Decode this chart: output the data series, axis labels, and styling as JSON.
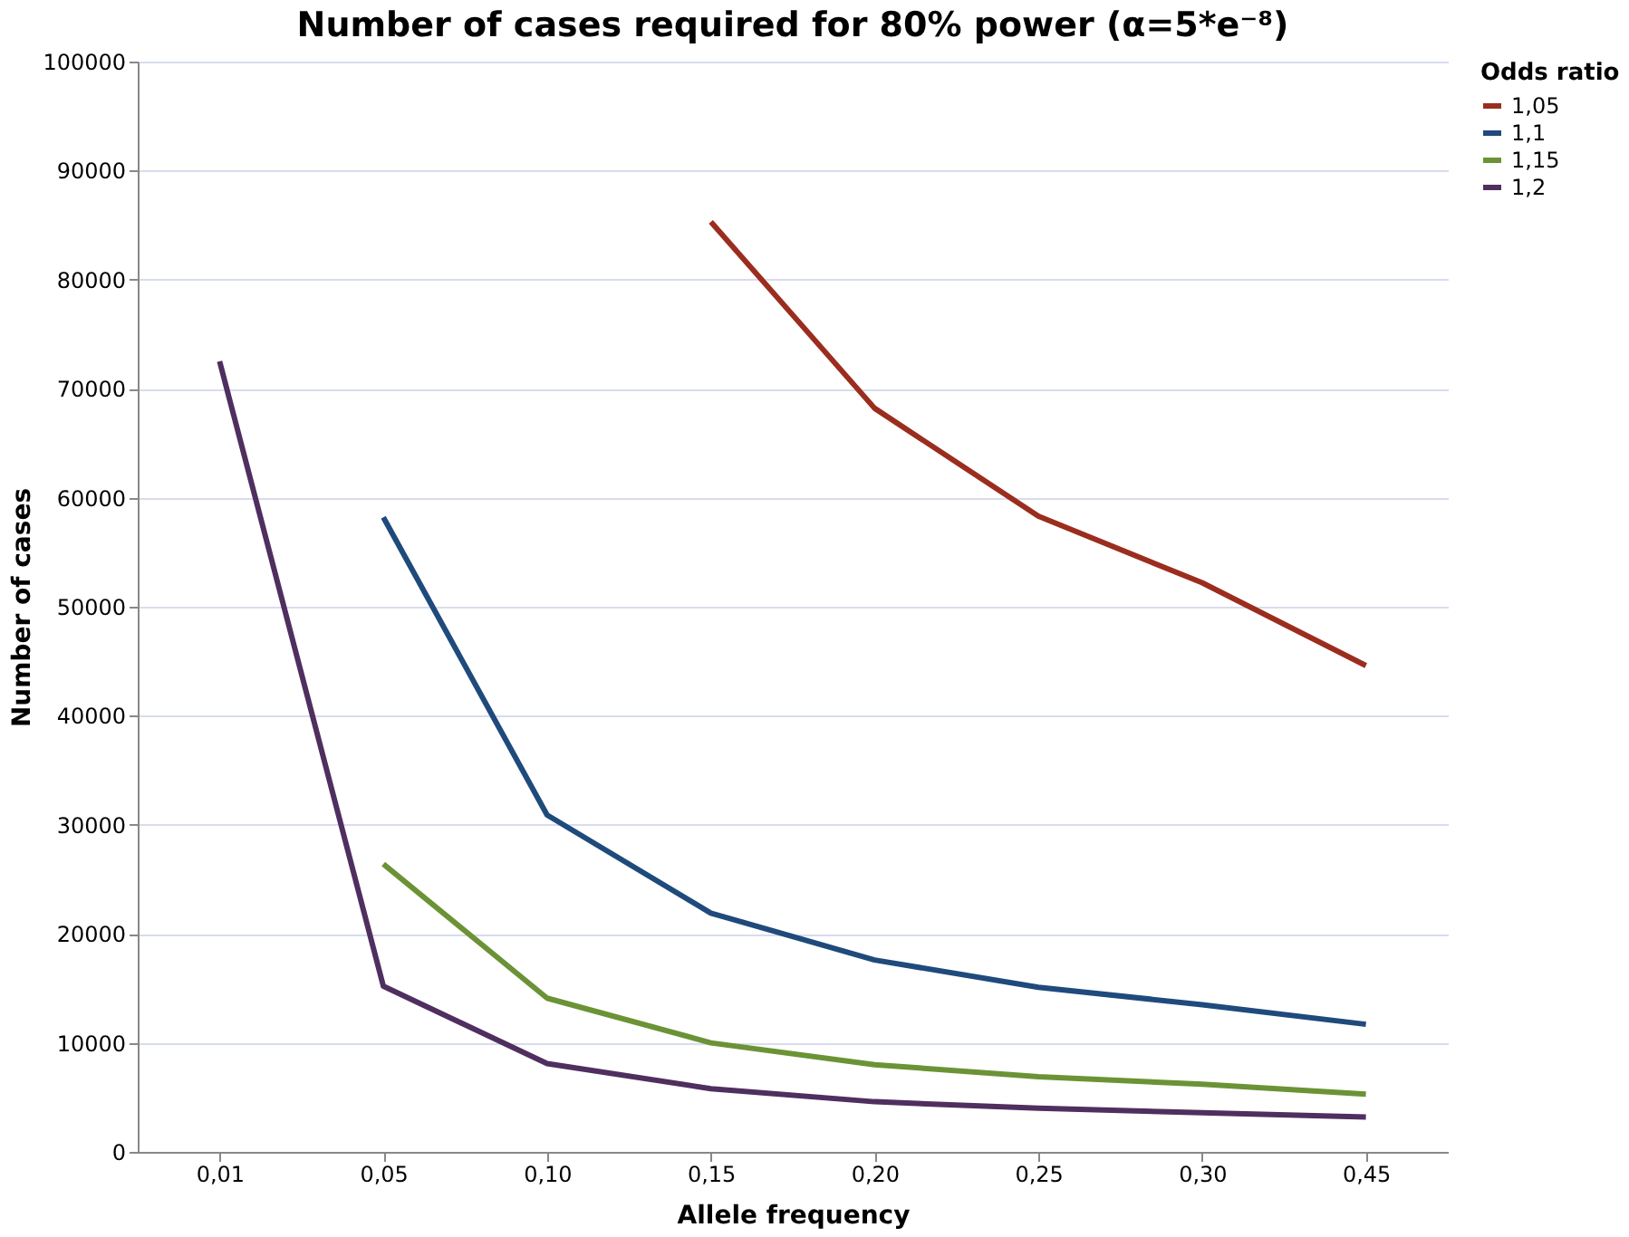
{
  "chart_data": {
    "type": "line",
    "title": "Number of cases required for 80% power (α=5*e⁻⁸)",
    "xlabel": "Allele frequency",
    "ylabel": "Number of cases",
    "legend_title": "Odds ratio",
    "categories": [
      "0,01",
      "0,05",
      "0,10",
      "0,15",
      "0,20",
      "0,25",
      "0,30",
      "0,45"
    ],
    "series": [
      {
        "name": "1,05",
        "color": "#9b2d1f",
        "values": [
          null,
          null,
          null,
          85300,
          68200,
          58300,
          52200,
          44600
        ]
      },
      {
        "name": "1,1",
        "color": "#1f4a7c",
        "values": [
          null,
          58200,
          30900,
          21900,
          17600,
          15100,
          13500,
          11700
        ]
      },
      {
        "name": "1,15",
        "color": "#6b9336",
        "values": [
          null,
          26400,
          14100,
          10000,
          8000,
          6900,
          6200,
          5300
        ]
      },
      {
        "name": "1,2",
        "color": "#4f2f5f",
        "values": [
          72500,
          15200,
          8100,
          5800,
          4600,
          4000,
          3600,
          3200
        ]
      }
    ],
    "ylim": [
      0,
      100000
    ],
    "yticks": [
      0,
      10000,
      20000,
      30000,
      40000,
      50000,
      60000,
      70000,
      80000,
      90000,
      100000
    ],
    "grid": "y",
    "legend": "right",
    "marker": "none",
    "line_style": "solid"
  }
}
